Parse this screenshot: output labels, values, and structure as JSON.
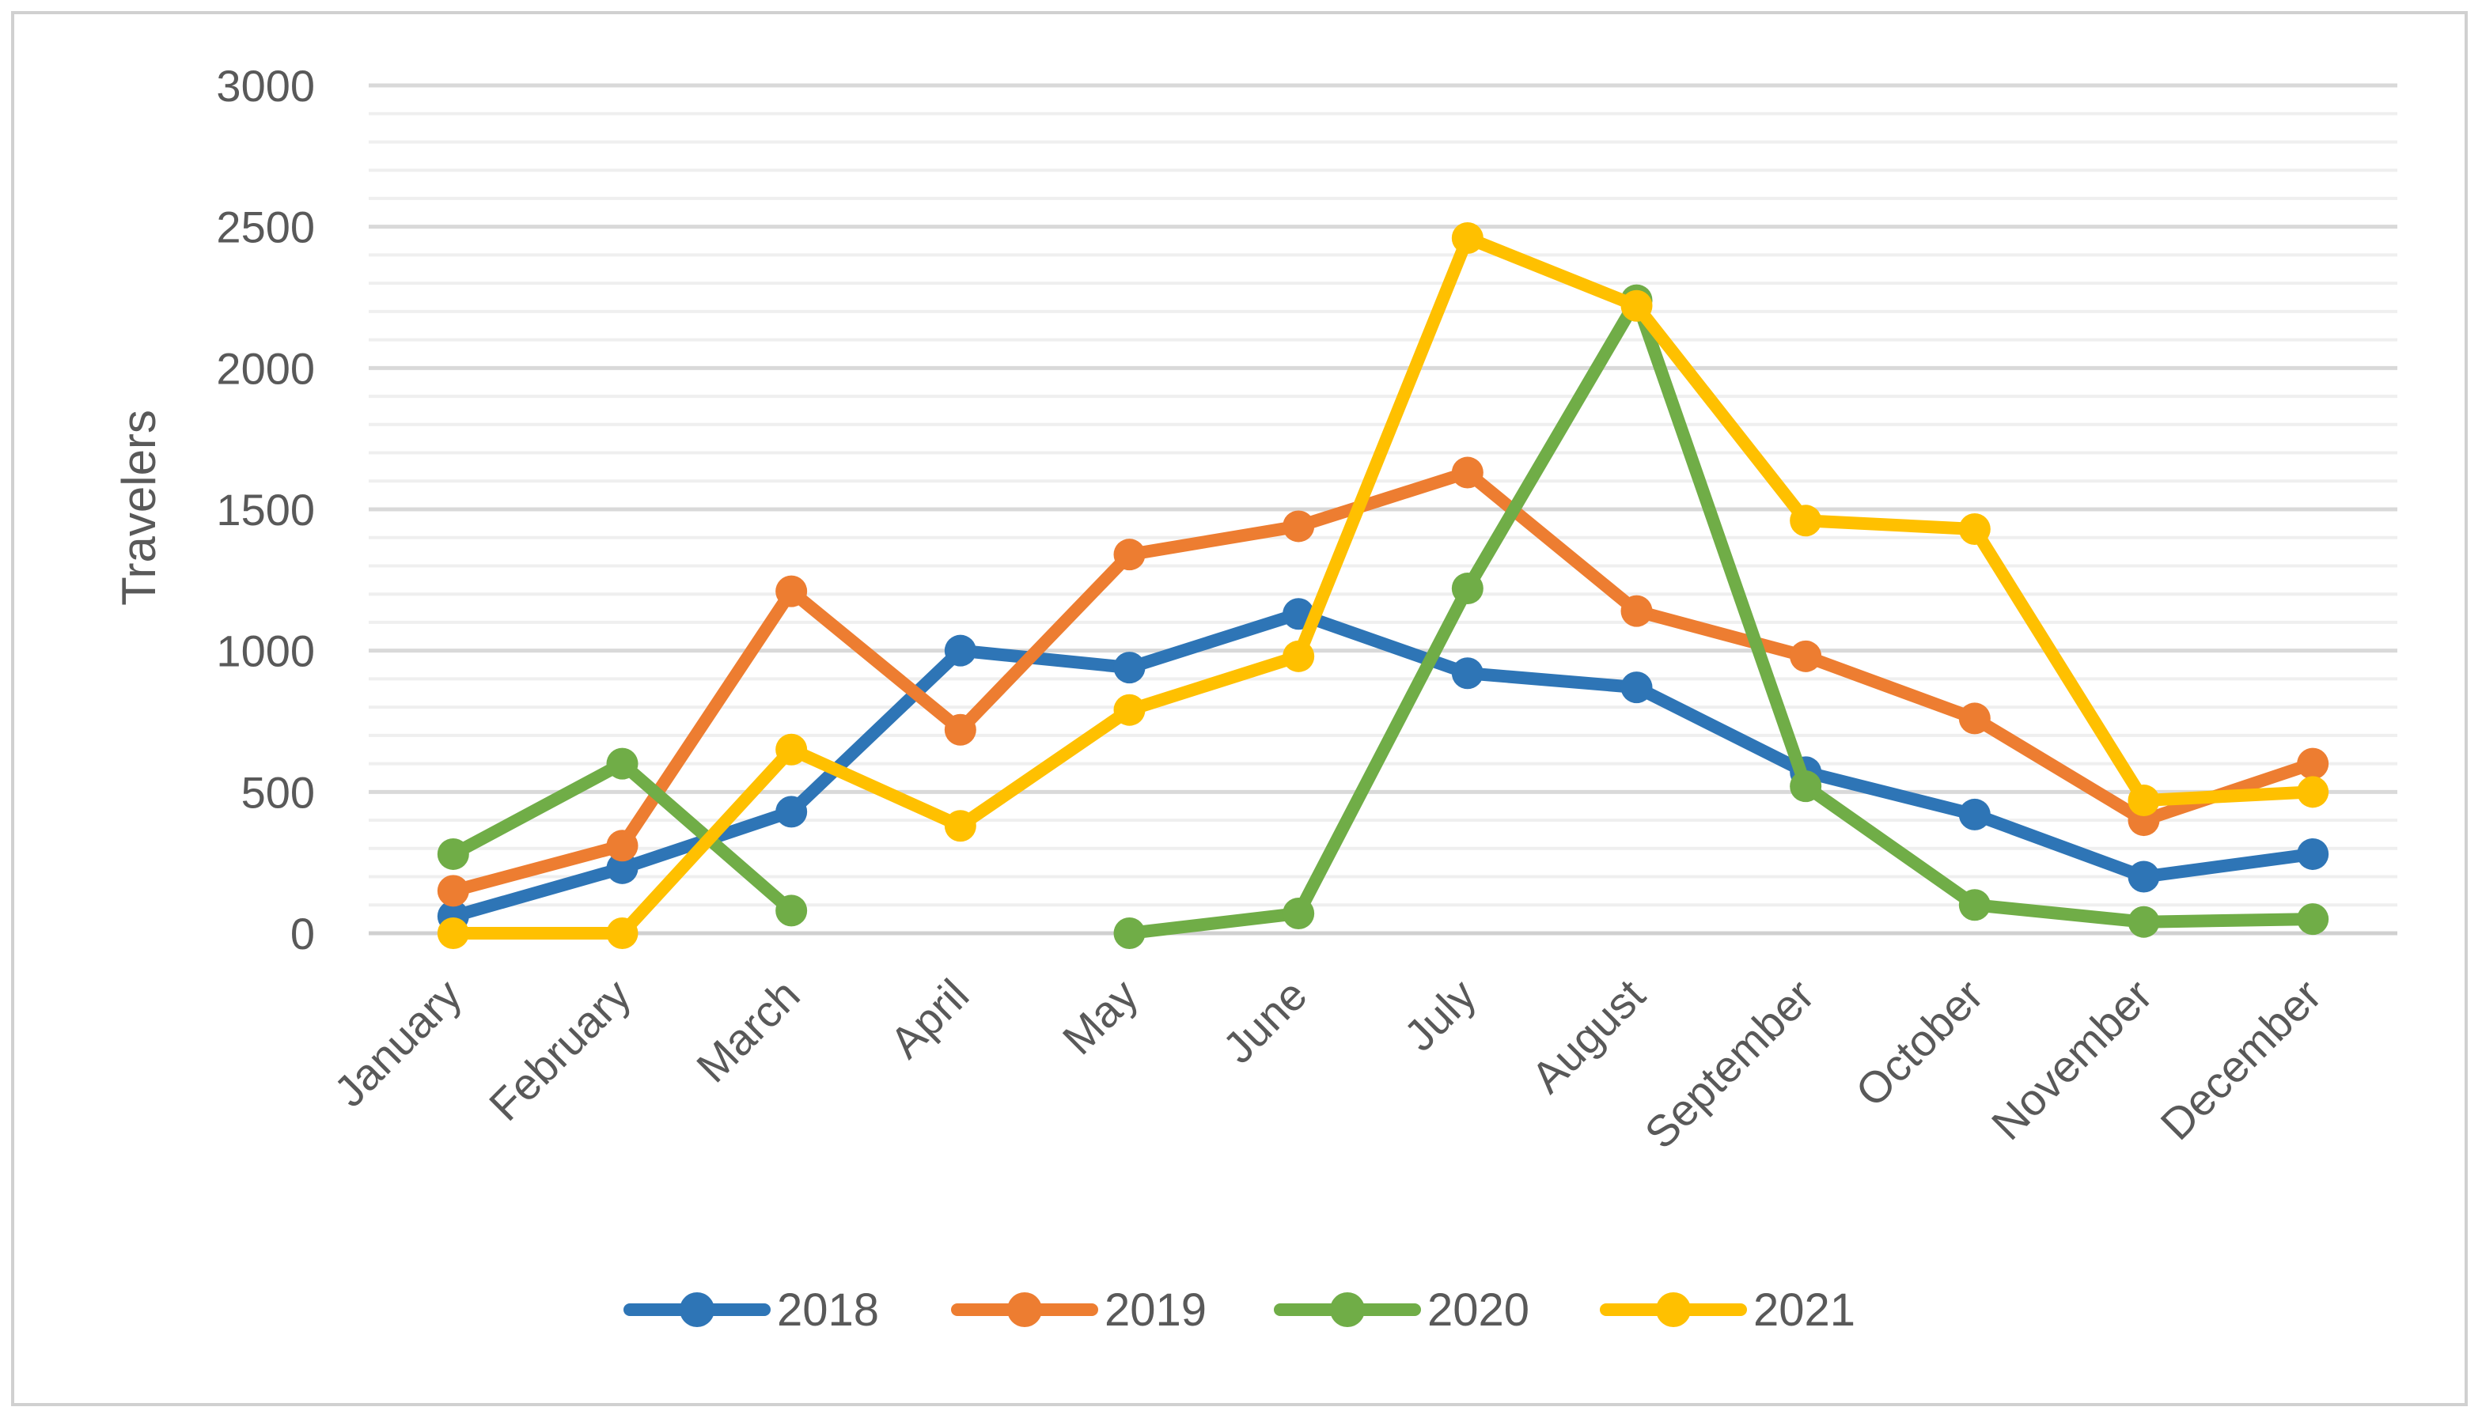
{
  "chart_data": {
    "type": "line",
    "title": "",
    "xlabel": "",
    "ylabel": "Travelers",
    "ylim": [
      0,
      3000
    ],
    "ytick_step": 500,
    "yminor_step": 100,
    "categories": [
      "January",
      "February",
      "March",
      "April",
      "May",
      "June",
      "July",
      "August",
      "September",
      "October",
      "November",
      "December"
    ],
    "series": [
      {
        "name": "2018",
        "color": "#2E75B6",
        "values": [
          60,
          230,
          430,
          1000,
          940,
          1130,
          920,
          870,
          570,
          420,
          200,
          280
        ]
      },
      {
        "name": "2019",
        "color": "#ED7D31",
        "values": [
          150,
          310,
          1210,
          720,
          1340,
          1440,
          1630,
          1140,
          980,
          760,
          400,
          600
        ]
      },
      {
        "name": "2020",
        "color": "#70AD47",
        "values": [
          280,
          600,
          80,
          null,
          0,
          70,
          1220,
          2240,
          520,
          100,
          40,
          50
        ]
      },
      {
        "name": "2021",
        "color": "#FFC000",
        "values": [
          0,
          0,
          650,
          380,
          790,
          980,
          2460,
          2220,
          1460,
          1430,
          470,
          500
        ]
      }
    ]
  }
}
